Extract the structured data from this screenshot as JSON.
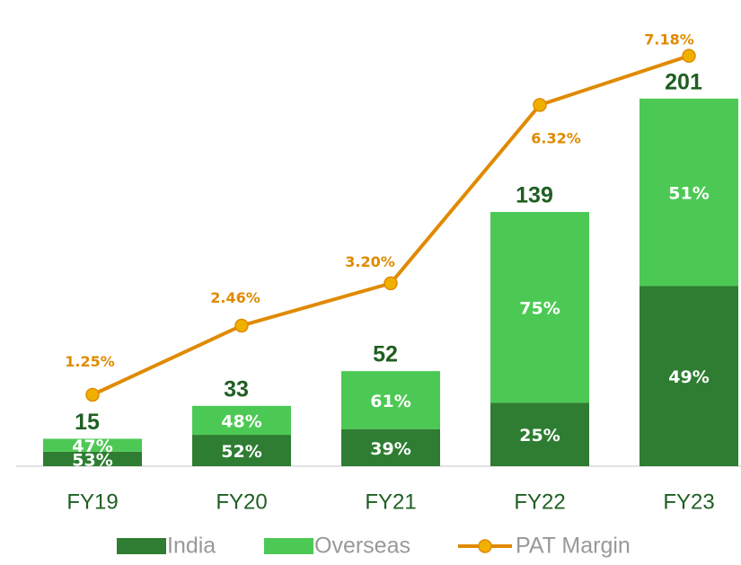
{
  "chart_data": {
    "type": "bar",
    "categories": [
      "FY19",
      "FY20",
      "FY21",
      "FY22",
      "FY23"
    ],
    "totals": [
      15,
      33,
      52,
      139,
      201
    ],
    "series": [
      {
        "name": "India",
        "color": "#2e7d32",
        "values": [
          53,
          52,
          39,
          25,
          49
        ],
        "value_labels": [
          "53%",
          "52%",
          "39%",
          "25%",
          "49%"
        ]
      },
      {
        "name": "Overseas",
        "color": "#4cc954",
        "values": [
          47,
          48,
          61,
          75,
          51
        ],
        "value_labels": [
          "47%",
          "48%",
          "61%",
          "75%",
          "51%"
        ]
      },
      {
        "name": "PAT Margin",
        "type": "line",
        "axis": "y2",
        "color": "#e08a00",
        "values": [
          1.25,
          2.46,
          3.2,
          6.32,
          7.18
        ],
        "value_labels": [
          "1.25%",
          "2.46%",
          "3.20%",
          "6.32%",
          "7.18%"
        ]
      }
    ],
    "ylim": [
      0,
      250
    ],
    "y2lim": [
      0,
      8
    ]
  }
}
